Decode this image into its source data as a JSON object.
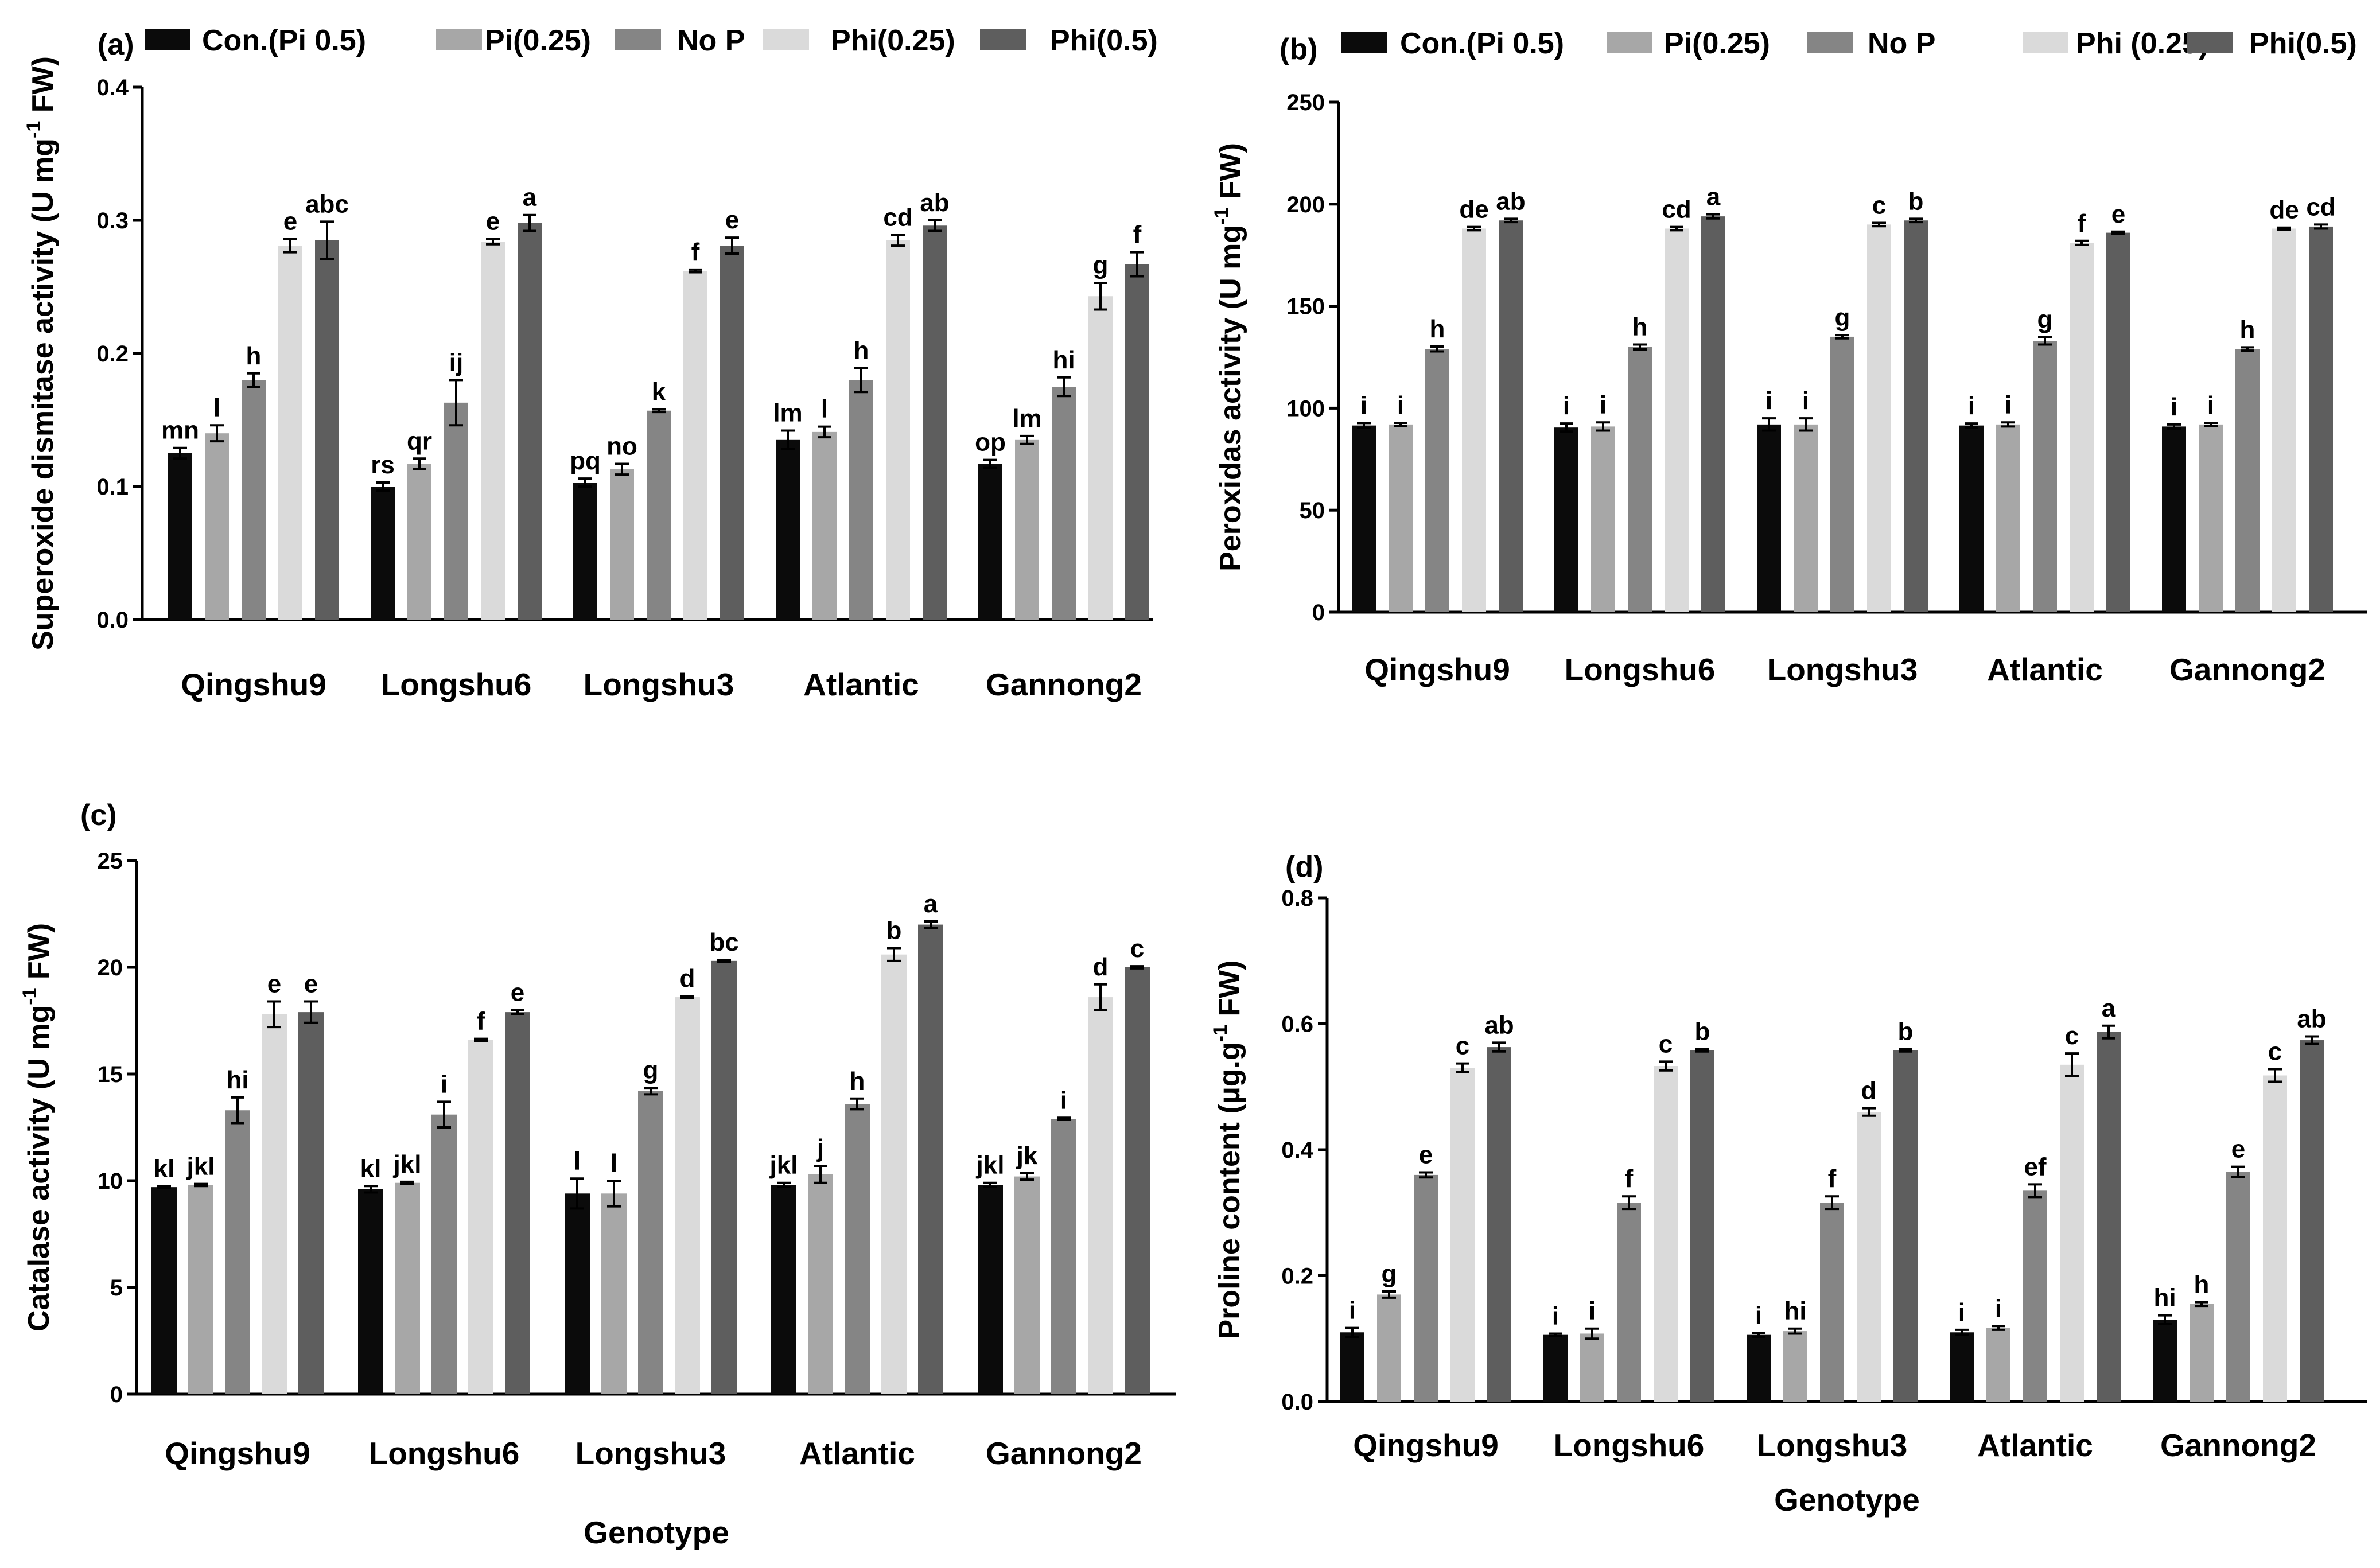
{
  "colors": {
    "Con.": "#0b0b0b",
    "Pi(0.25)": "#a7a7a7",
    "NoP": "#858585",
    "Phi(0.25)": "#dadada",
    "Phi(0.5)": "#5e5e5e"
  },
  "chart_data": [
    {
      "type": "bar",
      "panel": "(a)",
      "legend": [
        "Con.(Pi 0.5)",
        "Pi(0.25)",
        "No P",
        "Phi(0.25)",
        "Phi(0.5)"
      ],
      "ylabel_main": "Superoxide dismitase activity (U mg",
      "ylabel_sup": "-1",
      "ylabel_tail": " FW)",
      "xlabel": "",
      "ylim": [
        0,
        0.4
      ],
      "yticks": [
        "0.0",
        "0.1",
        "0.2",
        "0.3",
        "0.4"
      ],
      "yticks_values": [
        0,
        0.1,
        0.2,
        0.3,
        0.4
      ],
      "categories": [
        "Qingshu9",
        "Longshu6",
        "Longshu3",
        "Atlantic",
        "Gannong2"
      ],
      "series": [
        {
          "key": "Con.",
          "values": [
            0.125,
            0.1,
            0.103,
            0.135,
            0.117
          ],
          "errors": [
            0.004,
            0.003,
            0.003,
            0.007,
            0.003
          ],
          "letters": [
            "mn",
            "rs",
            "pq",
            "lm",
            "op"
          ]
        },
        {
          "key": "Pi(0.25)",
          "values": [
            0.14,
            0.117,
            0.113,
            0.141,
            0.135
          ],
          "errors": [
            0.006,
            0.004,
            0.004,
            0.004,
            0.003
          ],
          "letters": [
            "l",
            "qr",
            "no",
            "l",
            "lm"
          ]
        },
        {
          "key": "NoP",
          "values": [
            0.18,
            0.163,
            0.157,
            0.18,
            0.175
          ],
          "errors": [
            0.005,
            0.017,
            0.001,
            0.009,
            0.007
          ],
          "letters": [
            "h",
            "ij",
            "k",
            "h",
            "hi"
          ]
        },
        {
          "key": "Phi(0.25)",
          "values": [
            0.281,
            0.284,
            0.262,
            0.285,
            0.243
          ],
          "errors": [
            0.005,
            0.002,
            0.001,
            0.004,
            0.01
          ],
          "letters": [
            "e",
            "e",
            "f",
            "cd",
            "g"
          ]
        },
        {
          "key": "Phi(0.5)",
          "values": [
            0.285,
            0.298,
            0.281,
            0.296,
            0.267
          ],
          "errors": [
            0.014,
            0.006,
            0.006,
            0.004,
            0.009
          ],
          "letters": [
            "abc",
            "a",
            "e",
            "ab",
            "f"
          ]
        }
      ]
    },
    {
      "type": "bar",
      "panel": "(b)",
      "legend": [
        "Con.(Pi 0.5)",
        "Pi(0.25)",
        "No P",
        "Phi (0.25)",
        "Phi(0.5)"
      ],
      "ylabel_main": "Peroxidas activity (U mg",
      "ylabel_sup": "-1",
      "ylabel_tail": " FW)",
      "xlabel": "",
      "ylim": [
        0,
        250
      ],
      "yticks": [
        "0",
        "50",
        "100",
        "150",
        "200",
        "250"
      ],
      "yticks_values": [
        0,
        50,
        100,
        150,
        200,
        250
      ],
      "categories": [
        "Qingshu9",
        "Longshu6",
        "Longshu3",
        "Atlantic",
        "Gannong2"
      ],
      "series": [
        {
          "key": "Con.",
          "values": [
            91.5,
            90.5,
            92,
            91.5,
            91
          ],
          "errors": [
            1.2,
            2,
            3,
            1,
            1
          ],
          "letters": [
            "i",
            "i",
            "i",
            "i",
            "i"
          ]
        },
        {
          "key": "Pi(0.25)",
          "values": [
            92,
            91,
            92,
            92,
            92
          ],
          "errors": [
            0.8,
            2,
            3,
            1,
            0.8
          ],
          "letters": [
            "i",
            "i",
            "i",
            "i",
            "i"
          ]
        },
        {
          "key": "NoP",
          "values": [
            129,
            130,
            135,
            133,
            129
          ],
          "errors": [
            1.2,
            1.2,
            0.8,
            1.8,
            0.8
          ],
          "letters": [
            "h",
            "h",
            "g",
            "g",
            "h"
          ]
        },
        {
          "key": "Phi(0.25)",
          "values": [
            188,
            188,
            190,
            181,
            188
          ],
          "errors": [
            0.8,
            0.8,
            0.8,
            1,
            0.5
          ],
          "letters": [
            "de",
            "cd",
            "c",
            "f",
            "de"
          ]
        },
        {
          "key": "Phi(0.5)",
          "values": [
            192,
            194,
            192,
            186,
            189
          ],
          "errors": [
            0.8,
            1,
            0.8,
            0.5,
            1
          ],
          "letters": [
            "ab",
            "a",
            "b",
            "e",
            "cd"
          ]
        }
      ]
    },
    {
      "type": "bar",
      "panel": "(c)",
      "legend": [],
      "ylabel_main": "Catalase activity (U mg",
      "ylabel_sup": "-1",
      "ylabel_tail": " FW)",
      "xlabel": "Genotype",
      "ylim": [
        0,
        25
      ],
      "yticks": [
        "0",
        "5",
        "10",
        "15",
        "20",
        "25"
      ],
      "yticks_values": [
        0,
        5,
        10,
        15,
        20,
        25
      ],
      "categories": [
        "Qingshu9",
        "Longshu6",
        "Longshu3",
        "Atlantic",
        "Gannong2"
      ],
      "series": [
        {
          "key": "Con.",
          "values": [
            9.7,
            9.6,
            9.4,
            9.8,
            9.8
          ],
          "errors": [
            0.05,
            0.15,
            0.7,
            0.1,
            0.1
          ],
          "letters": [
            "kl",
            "kl",
            "l",
            "jkl",
            "jkl"
          ]
        },
        {
          "key": "Pi(0.25)",
          "values": [
            9.8,
            9.9,
            9.4,
            10.3,
            10.2
          ],
          "errors": [
            0.05,
            0.05,
            0.6,
            0.4,
            0.15
          ],
          "letters": [
            "jkl",
            "jkl",
            "l",
            "j",
            "jk"
          ]
        },
        {
          "key": "NoP",
          "values": [
            13.3,
            13.1,
            14.2,
            13.6,
            12.9
          ],
          "errors": [
            0.6,
            0.6,
            0.15,
            0.25,
            0.05
          ],
          "letters": [
            "hi",
            "i",
            "g",
            "h",
            "i"
          ]
        },
        {
          "key": "Phi(0.25)",
          "values": [
            17.8,
            16.6,
            18.6,
            20.6,
            18.6
          ],
          "errors": [
            0.6,
            0.05,
            0.05,
            0.3,
            0.6
          ],
          "letters": [
            "e",
            "f",
            "d",
            "b",
            "d"
          ]
        },
        {
          "key": "Phi(0.5)",
          "values": [
            17.9,
            17.9,
            20.3,
            22,
            20
          ],
          "errors": [
            0.5,
            0.1,
            0.05,
            0.15,
            0.05
          ],
          "letters": [
            "e",
            "e",
            "bc",
            "a",
            "c"
          ]
        }
      ]
    },
    {
      "type": "bar",
      "panel": "(d)",
      "legend": [],
      "ylabel_main": "Proline content (µg.g",
      "ylabel_sup": "-1",
      "ylabel_tail": " FW)",
      "xlabel": "Genotype",
      "ylim": [
        0,
        0.8
      ],
      "yticks": [
        "0.0",
        "0.2",
        "0.4",
        "0.6",
        "0.8"
      ],
      "yticks_values": [
        0,
        0.2,
        0.4,
        0.6,
        0.8
      ],
      "categories": [
        "Qingshu9",
        "Longshu6",
        "Longshu3",
        "Atlantic",
        "Gannong2"
      ],
      "series": [
        {
          "key": "Con.",
          "values": [
            0.11,
            0.106,
            0.106,
            0.11,
            0.13
          ],
          "errors": [
            0.007,
            0.002,
            0.003,
            0.004,
            0.007
          ],
          "letters": [
            "i",
            "i",
            "i",
            "i",
            "hi"
          ]
        },
        {
          "key": "Pi(0.25)",
          "values": [
            0.17,
            0.108,
            0.112,
            0.117,
            0.155
          ],
          "errors": [
            0.005,
            0.008,
            0.004,
            0.003,
            0.003
          ],
          "letters": [
            "g",
            "i",
            "hi",
            "i",
            "h"
          ]
        },
        {
          "key": "NoP",
          "values": [
            0.36,
            0.316,
            0.316,
            0.335,
            0.365
          ],
          "errors": [
            0.004,
            0.01,
            0.01,
            0.01,
            0.008
          ],
          "letters": [
            "e",
            "f",
            "f",
            "ef",
            "e"
          ]
        },
        {
          "key": "Phi(0.25)",
          "values": [
            0.53,
            0.533,
            0.46,
            0.535,
            0.518
          ],
          "errors": [
            0.007,
            0.007,
            0.006,
            0.018,
            0.01
          ],
          "letters": [
            "c",
            "c",
            "d",
            "c",
            "c"
          ]
        },
        {
          "key": "Phi(0.5)",
          "values": [
            0.563,
            0.558,
            0.558,
            0.587,
            0.574
          ],
          "errors": [
            0.007,
            0.002,
            0.002,
            0.01,
            0.006
          ],
          "letters": [
            "ab",
            "b",
            "b",
            "a",
            "ab"
          ]
        }
      ]
    }
  ]
}
